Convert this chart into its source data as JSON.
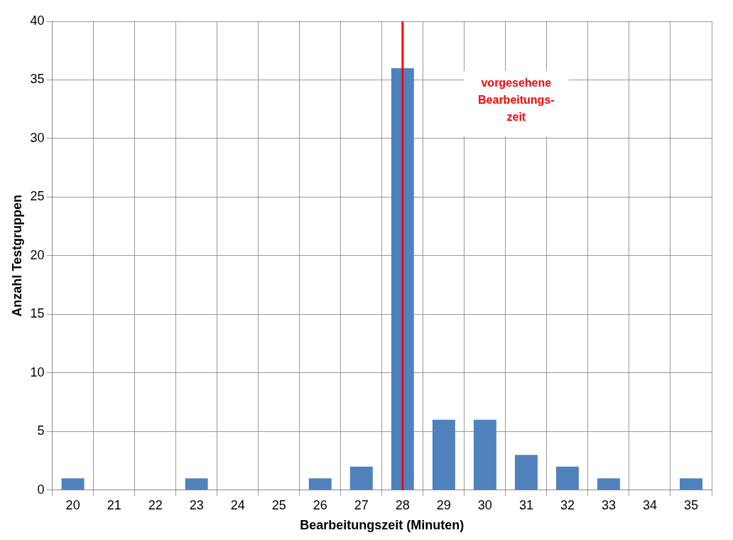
{
  "chart_data": {
    "type": "bar",
    "xlabel": "Bearbeitungszeit (Minuten)",
    "ylabel": "Anzahl Testgruppen",
    "categories": [
      "20",
      "21",
      "22",
      "23",
      "24",
      "25",
      "26",
      "27",
      "28",
      "29",
      "30",
      "31",
      "32",
      "33",
      "34",
      "35"
    ],
    "values": [
      1,
      0,
      0,
      1,
      0,
      0,
      1,
      2,
      36,
      6,
      6,
      3,
      2,
      1,
      0,
      1
    ],
    "color": "#4f81bd",
    "ylim": [
      0,
      40
    ],
    "yticks": [
      0,
      5,
      10,
      15,
      20,
      25,
      30,
      35,
      40
    ],
    "grid": true,
    "legend": false,
    "ref_lines": [
      {
        "axis": "x",
        "value": "28",
        "label": "vorgesehene\nBearbeitungs-\nzeit",
        "color": "#ff0000"
      }
    ]
  }
}
